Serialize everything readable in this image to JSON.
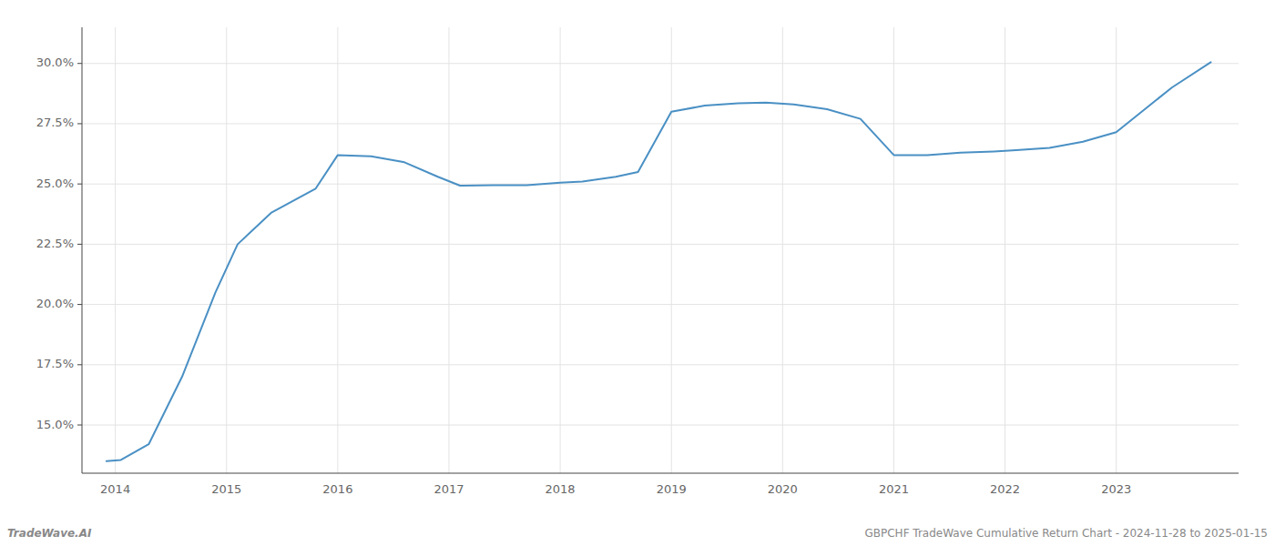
{
  "chart_data": {
    "type": "line",
    "x": [
      2013.92,
      2014.05,
      2014.3,
      2014.6,
      2014.9,
      2015.1,
      2015.4,
      2015.8,
      2016.0,
      2016.3,
      2016.6,
      2016.9,
      2017.1,
      2017.4,
      2017.7,
      2018.0,
      2018.2,
      2018.5,
      2018.7,
      2019.0,
      2019.3,
      2019.6,
      2019.85,
      2020.1,
      2020.4,
      2020.7,
      2021.0,
      2021.3,
      2021.6,
      2021.9,
      2022.1,
      2022.4,
      2022.7,
      2023.0,
      2023.5,
      2023.85
    ],
    "values": [
      13.5,
      13.55,
      14.2,
      17.0,
      20.5,
      22.5,
      23.8,
      24.8,
      26.2,
      26.15,
      25.9,
      25.3,
      24.93,
      24.95,
      24.95,
      25.05,
      25.1,
      25.3,
      25.5,
      28.0,
      28.25,
      28.35,
      28.38,
      28.3,
      28.1,
      27.7,
      26.2,
      26.2,
      26.3,
      26.35,
      26.4,
      26.5,
      26.75,
      27.15,
      29.0,
      30.05
    ],
    "color": "#4a90c4",
    "xlim": [
      2013.7,
      2024.1
    ],
    "ylim": [
      13.0,
      31.5
    ],
    "xticks": [
      2014,
      2015,
      2016,
      2017,
      2018,
      2019,
      2020,
      2021,
      2022,
      2023
    ],
    "yticks": [
      {
        "value": 15.0,
        "label": "15.0%"
      },
      {
        "value": 17.5,
        "label": "17.5%"
      },
      {
        "value": 20.0,
        "label": "20.0%"
      },
      {
        "value": 22.5,
        "label": "22.5%"
      },
      {
        "value": 25.0,
        "label": "25.0%"
      },
      {
        "value": 27.5,
        "label": "27.5%"
      },
      {
        "value": 30.0,
        "label": "30.0%"
      }
    ],
    "grid": true,
    "annotations": [
      "TradeWave.AI",
      "GBPCHF TradeWave Cumulative Return Chart - 2024-11-28 to 2025-01-15"
    ]
  }
}
